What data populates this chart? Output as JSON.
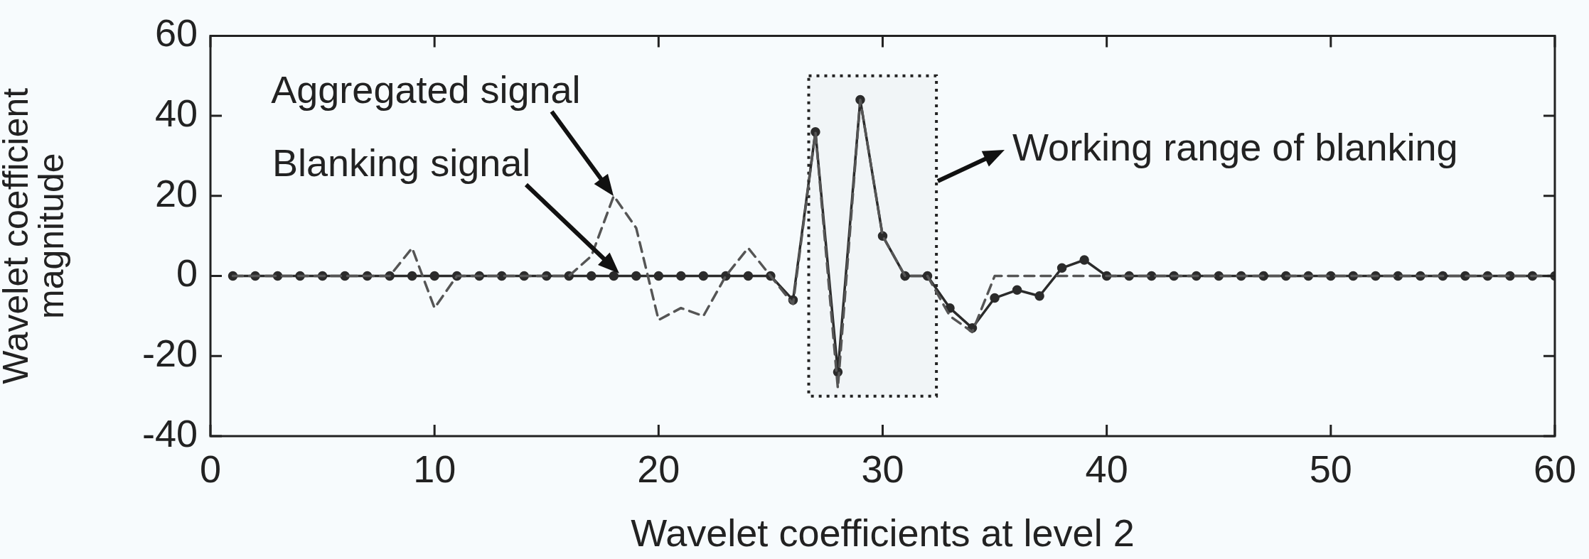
{
  "chart_data": {
    "type": "line",
    "xlabel": "Wavelet coefficients at level 2",
    "ylabel": "Wavelet coefficient\nmagnitude",
    "xlim": [
      0,
      60
    ],
    "xticks": [
      0,
      10,
      20,
      30,
      40,
      50,
      60
    ],
    "ylim": [
      -40,
      60
    ],
    "yticks": [
      -40,
      -20,
      0,
      20,
      40,
      60
    ],
    "grid": false,
    "legend": false,
    "x": [
      1,
      2,
      3,
      4,
      5,
      6,
      7,
      8,
      9,
      10,
      11,
      12,
      13,
      14,
      15,
      16,
      17,
      18,
      19,
      20,
      21,
      22,
      23,
      24,
      25,
      26,
      27,
      28,
      29,
      30,
      31,
      32,
      33,
      34,
      35,
      36,
      37,
      38,
      39,
      40,
      41,
      42,
      43,
      44,
      45,
      46,
      47,
      48,
      49,
      50,
      51,
      52,
      53,
      54,
      55,
      56,
      57,
      58,
      59,
      60
    ],
    "series": [
      {
        "color": "#555555",
        "line_style": "dashed",
        "marker": "none",
        "values": [
          0,
          0,
          0,
          0,
          0,
          0,
          0,
          0,
          7,
          -8,
          0,
          0,
          0,
          0,
          0,
          0,
          5,
          20,
          12,
          -11,
          -8,
          -10,
          0,
          7,
          0,
          -7,
          36,
          -28,
          44,
          10,
          0,
          0,
          -10,
          -14,
          0,
          0,
          0,
          0,
          0,
          0,
          0,
          0,
          0,
          0,
          0,
          0,
          0,
          0,
          0,
          0,
          0,
          0,
          0,
          0,
          0,
          0,
          0,
          0,
          0,
          0
        ]
      },
      {
        "color": "#2b2b2b",
        "line_style": "solid",
        "marker": "circle",
        "values": [
          0,
          0,
          0,
          0,
          0,
          0,
          0,
          0,
          0,
          0,
          0,
          0,
          0,
          0,
          0,
          0,
          0,
          0,
          0,
          0,
          0,
          0,
          0,
          0,
          0,
          -6,
          36,
          -24,
          44,
          10,
          0,
          0,
          -8,
          -13,
          -5.5,
          -3.5,
          -5,
          2,
          4,
          0,
          0,
          0,
          0,
          0,
          0,
          0,
          0,
          0,
          0,
          0,
          0,
          0,
          0,
          0,
          0,
          0,
          0,
          0,
          0,
          0
        ]
      }
    ],
    "annotations": [
      {
        "text": "Aggregated signal",
        "x": 18,
        "y": 20
      },
      "Blanking signal"
    ],
    "bands": [
      {
        "axis": "x",
        "from": 26.7,
        "to": 32.4,
        "label": "Working range of blanking"
      }
    ]
  }
}
